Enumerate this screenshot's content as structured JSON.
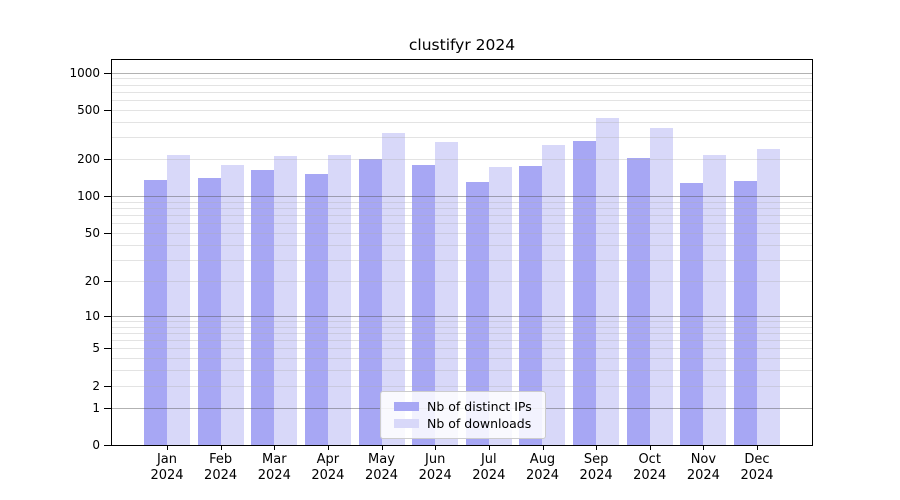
{
  "title": "clustifyr 2024",
  "chart_data": {
    "type": "bar",
    "title": "clustifyr 2024",
    "categories": [
      "Jan 2024",
      "Feb 2024",
      "Mar 2024",
      "Apr 2024",
      "May 2024",
      "Jun 2024",
      "Jul 2024",
      "Aug 2024",
      "Sep 2024",
      "Oct 2024",
      "Nov 2024",
      "Dec 2024"
    ],
    "series": [
      {
        "name": "Nb of distinct IPs",
        "color": "#a7a7f4",
        "values": [
          136,
          140,
          165,
          152,
          200,
          181,
          131,
          177,
          280,
          203,
          128,
          134
        ]
      },
      {
        "name": "Nb of downloads",
        "color": "#d8d8f9",
        "values": [
          218,
          180,
          214,
          217,
          325,
          277,
          172,
          260,
          431,
          360,
          215,
          242
        ]
      }
    ],
    "xlabel": "",
    "ylabel": "",
    "y_scale": "log1p",
    "y_ticks": [
      0,
      1,
      2,
      5,
      10,
      20,
      50,
      100,
      200,
      500,
      1000
    ],
    "ylim": [
      0,
      1250
    ],
    "grid": true,
    "grid_on_top_of_bars": true,
    "legend_position": "lower center",
    "colors": {
      "bar_distinct_ips": "#a7a7f4",
      "bar_downloads": "#d8d8f9",
      "major_gridline": "#b2b2b2",
      "minor_gridline": "#e3e3e3",
      "axis": "#000000",
      "background": "#ffffff"
    }
  }
}
